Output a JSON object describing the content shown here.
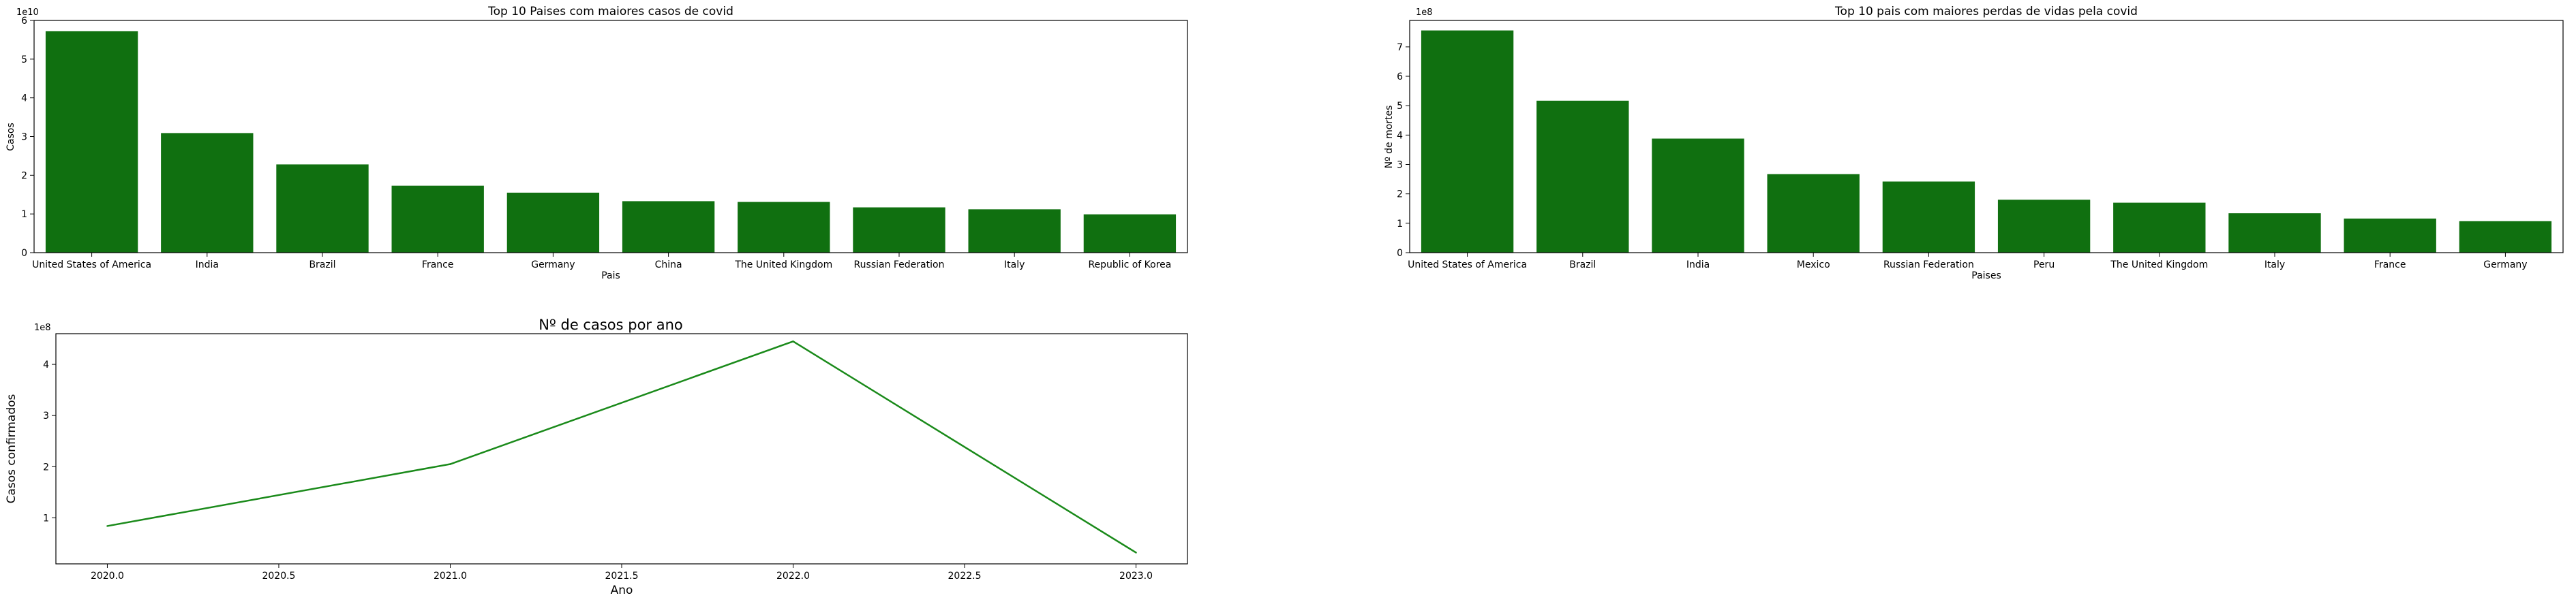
{
  "chart_data": [
    {
      "type": "bar",
      "title": "Top 10 Paises com maiores casos de covid",
      "xlabel": "Pais",
      "ylabel": "Casos",
      "offset_label": "1e10",
      "ylim": [
        0,
        6
      ],
      "yticks": [
        "0",
        "1",
        "2",
        "3",
        "4",
        "5",
        "6"
      ],
      "categories": [
        "United States of America",
        "India",
        "Brazil",
        "France",
        "Germany",
        "China",
        "The United Kingdom",
        "Russian Federation",
        "Italy",
        "Republic of Korea"
      ],
      "values": [
        5.72,
        3.09,
        2.28,
        1.73,
        1.55,
        1.33,
        1.31,
        1.17,
        1.12,
        0.99
      ],
      "color": "#107010",
      "grid": false
    },
    {
      "type": "bar",
      "title": "Top 10 pais com maiores perdas de vidas pela covid",
      "xlabel": "Paises",
      "ylabel": "Nº de mortes",
      "offset_label": "1e8",
      "ylim": [
        0,
        7.9
      ],
      "yticks": [
        "0",
        "1",
        "2",
        "3",
        "4",
        "5",
        "6",
        "7"
      ],
      "categories": [
        "United States of America",
        "Brazil",
        "India",
        "Mexico",
        "Russian Federation",
        "Peru",
        "The United Kingdom",
        "Italy",
        "France",
        "Germany"
      ],
      "values": [
        7.56,
        5.17,
        3.88,
        2.67,
        2.42,
        1.8,
        1.7,
        1.34,
        1.16,
        1.07
      ],
      "color": "#107010",
      "grid": false
    },
    {
      "type": "line",
      "title": "Nº de casos por ano",
      "xlabel": "Ano",
      "ylabel": "Casos confirmados",
      "offset_label": "1e8",
      "xlim": [
        2019.85,
        2023.15
      ],
      "ylim": [
        0.1,
        4.6
      ],
      "xticks": [
        "2020.0",
        "2020.5",
        "2021.0",
        "2021.5",
        "2022.0",
        "2022.5",
        "2023.0"
      ],
      "yticks": [
        "1",
        "2",
        "3",
        "4"
      ],
      "x": [
        2020.0,
        2021.0,
        2022.0,
        2023.0
      ],
      "y": [
        0.84,
        2.05,
        4.45,
        0.32
      ],
      "color": "#1a8a1a",
      "grid": false
    }
  ]
}
